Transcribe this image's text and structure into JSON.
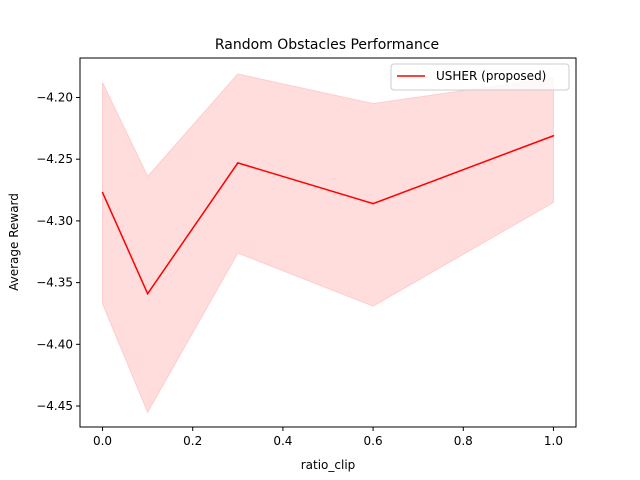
{
  "chart_data": {
    "type": "line",
    "title": "Random Obstacles Performance",
    "xlabel": "ratio_clip",
    "ylabel": "Average Reward",
    "xlim": [
      -0.05,
      1.05
    ],
    "ylim": [
      -4.467,
      -4.168
    ],
    "xticks": [
      0.0,
      0.2,
      0.4,
      0.6,
      0.8,
      1.0
    ],
    "xtick_labels": [
      "0.0",
      "0.2",
      "0.4",
      "0.6",
      "0.8",
      "1.0"
    ],
    "yticks": [
      -4.45,
      -4.4,
      -4.35,
      -4.3,
      -4.25,
      -4.2
    ],
    "ytick_labels": [
      "−4.45",
      "−4.40",
      "−4.35",
      "−4.30",
      "−4.25",
      "−4.20"
    ],
    "grid": false,
    "legend_position": "top-right",
    "series": [
      {
        "name": "USHER (proposed)",
        "color": "#ff0000",
        "band_color": "#ffdddd",
        "x": [
          0.0,
          0.1,
          0.3,
          0.6,
          1.0
        ],
        "y": [
          -4.277,
          -4.359,
          -4.253,
          -4.286,
          -4.231
        ],
        "upper": [
          -4.188,
          -4.264,
          -4.181,
          -4.205,
          -4.184
        ],
        "lower": [
          -4.367,
          -4.455,
          -4.326,
          -4.369,
          -4.285
        ]
      }
    ]
  }
}
